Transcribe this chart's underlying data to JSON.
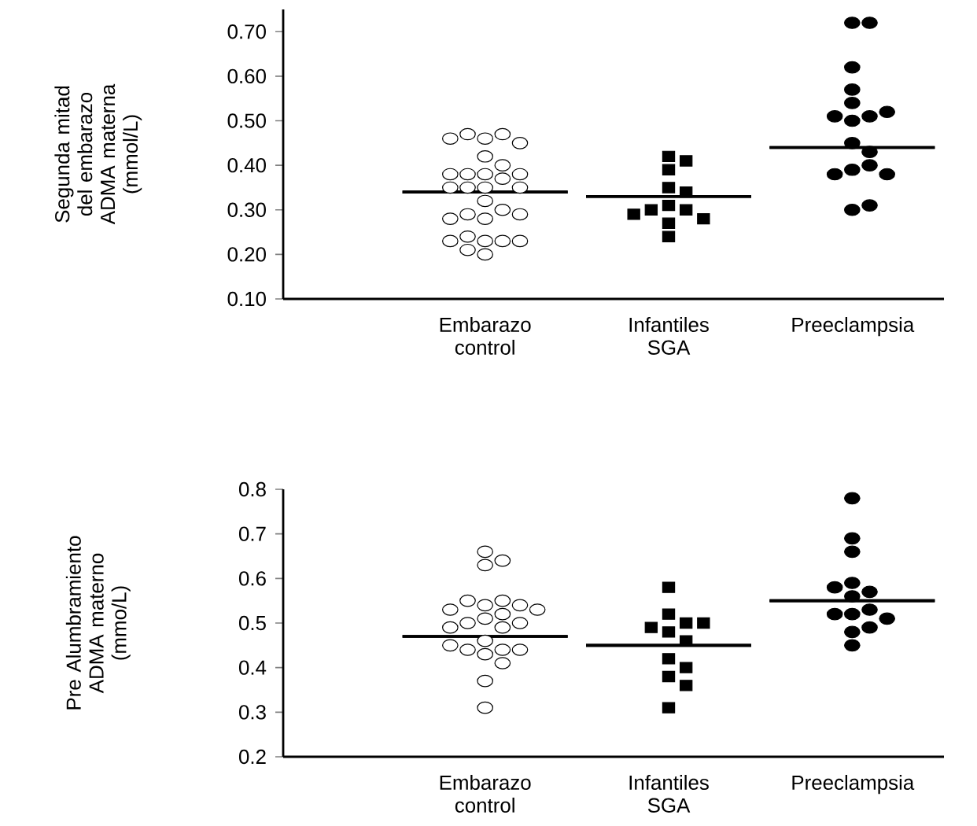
{
  "chart_data": [
    {
      "type": "scatter",
      "ylabel": "Segunda mitad del embarazo ADMA materna (mmol/L)",
      "categories": [
        "Embarazo control",
        "Infantiles SGA",
        "Preeclampsia"
      ],
      "ylim": [
        0.1,
        0.75
      ],
      "yticks": [
        {
          "value": 0.1,
          "label": "0.10"
        },
        {
          "value": 0.2,
          "label": "0.20"
        },
        {
          "value": 0.3,
          "label": "0.30"
        },
        {
          "value": 0.4,
          "label": "0.40"
        },
        {
          "value": 0.5,
          "label": "0.50"
        },
        {
          "value": 0.6,
          "label": "0.60"
        },
        {
          "value": 0.7,
          "label": "0.70"
        }
      ],
      "series": [
        {
          "color": "#ffffff",
          "marker": "circle",
          "x": [
            "Embarazo control",
            "Embarazo control",
            "Embarazo control",
            "Embarazo control",
            "Embarazo control",
            "Embarazo control",
            "Embarazo control",
            "Embarazo control",
            "Embarazo control",
            "Embarazo control",
            "Embarazo control",
            "Embarazo control",
            "Embarazo control",
            "Embarazo control",
            "Embarazo control",
            "Embarazo control",
            "Embarazo control",
            "Embarazo control",
            "Embarazo control",
            "Embarazo control",
            "Embarazo control",
            "Embarazo control",
            "Embarazo control",
            "Embarazo control",
            "Embarazo control",
            "Embarazo control",
            "Embarazo control",
            "Embarazo control",
            "Embarazo control"
          ],
          "values": [
            0.46,
            0.47,
            0.47,
            0.45,
            0.46,
            0.42,
            0.4,
            0.38,
            0.38,
            0.38,
            0.38,
            0.37,
            0.35,
            0.35,
            0.35,
            0.35,
            0.32,
            0.3,
            0.28,
            0.29,
            0.29,
            0.28,
            0.23,
            0.23,
            0.24,
            0.23,
            0.23,
            0.2,
            0.21
          ]
        },
        {
          "color": "#000000",
          "marker": "square",
          "x": [
            "Infantiles SGA",
            "Infantiles SGA",
            "Infantiles SGA",
            "Infantiles SGA",
            "Infantiles SGA",
            "Infantiles SGA",
            "Infantiles SGA",
            "Infantiles SGA",
            "Infantiles SGA",
            "Infantiles SGA",
            "Infantiles SGA",
            "Infantiles SGA"
          ],
          "values": [
            0.42,
            0.41,
            0.39,
            0.35,
            0.34,
            0.31,
            0.3,
            0.3,
            0.27,
            0.28,
            0.29,
            0.24
          ]
        },
        {
          "color": "#000000",
          "marker": "circle",
          "x": [
            "Preeclampsia",
            "Preeclampsia",
            "Preeclampsia",
            "Preeclampsia",
            "Preeclampsia",
            "Preeclampsia",
            "Preeclampsia",
            "Preeclampsia",
            "Preeclampsia",
            "Preeclampsia",
            "Preeclampsia",
            "Preeclampsia",
            "Preeclampsia",
            "Preeclampsia",
            "Preeclampsia",
            "Preeclampsia",
            "Preeclampsia"
          ],
          "values": [
            0.72,
            0.72,
            0.62,
            0.57,
            0.54,
            0.5,
            0.51,
            0.51,
            0.52,
            0.45,
            0.43,
            0.39,
            0.4,
            0.38,
            0.38,
            0.3,
            0.31
          ]
        },
        {
          "type": "box",
          "color": "#000000",
          "boxes": [
            {
              "low": 0.34,
              "q1": 0.34,
              "median": 0.34,
              "q3": 0.34,
              "high": 0.34
            },
            {
              "low": 0.33,
              "q1": 0.33,
              "median": 0.33,
              "q3": 0.33,
              "high": 0.33
            },
            {
              "low": 0.44,
              "q1": 0.44,
              "median": 0.44,
              "q3": 0.44,
              "high": 0.44
            }
          ]
        }
      ]
    },
    {
      "type": "scatter",
      "ylabel": "Pre Alumbramiento ADMA materno (mmo/L)",
      "categories": [
        "Embarazo control",
        "Infantiles SGA",
        "Preeclampsia"
      ],
      "ylim": [
        0.2,
        0.8
      ],
      "yticks": [
        0.2,
        0.3,
        0.4,
        0.5,
        0.6,
        0.7,
        0.8
      ],
      "series": [
        {
          "color": "#ffffff",
          "marker": "circle",
          "x": [
            "Embarazo control",
            "Embarazo control",
            "Embarazo control",
            "Embarazo control",
            "Embarazo control",
            "Embarazo control",
            "Embarazo control",
            "Embarazo control",
            "Embarazo control",
            "Embarazo control",
            "Embarazo control",
            "Embarazo control",
            "Embarazo control",
            "Embarazo control",
            "Embarazo control",
            "Embarazo control",
            "Embarazo control",
            "Embarazo control",
            "Embarazo control",
            "Embarazo control",
            "Embarazo control",
            "Embarazo control",
            "Embarazo control",
            "Embarazo control"
          ],
          "values": [
            0.63,
            0.64,
            0.66,
            0.54,
            0.55,
            0.55,
            0.54,
            0.53,
            0.51,
            0.52,
            0.53,
            0.5,
            0.5,
            0.49,
            0.49,
            0.46,
            0.44,
            0.44,
            0.44,
            0.45,
            0.43,
            0.41,
            0.37,
            0.31
          ]
        },
        {
          "color": "#000000",
          "marker": "square",
          "x": [
            "Infantiles SGA",
            "Infantiles SGA",
            "Infantiles SGA",
            "Infantiles SGA",
            "Infantiles SGA",
            "Infantiles SGA",
            "Infantiles SGA",
            "Infantiles SGA",
            "Infantiles SGA",
            "Infantiles SGA",
            "Infantiles SGA",
            "Infantiles SGA"
          ],
          "values": [
            0.58,
            0.52,
            0.5,
            0.48,
            0.49,
            0.5,
            0.46,
            0.42,
            0.4,
            0.38,
            0.36,
            0.31
          ]
        },
        {
          "color": "#000000",
          "marker": "circle",
          "x": [
            "Preeclampsia",
            "Preeclampsia",
            "Preeclampsia",
            "Preeclampsia",
            "Preeclampsia",
            "Preeclampsia",
            "Preeclampsia",
            "Preeclampsia",
            "Preeclampsia",
            "Preeclampsia",
            "Preeclampsia",
            "Preeclampsia",
            "Preeclampsia",
            "Preeclampsia"
          ],
          "values": [
            0.78,
            0.69,
            0.66,
            0.59,
            0.57,
            0.58,
            0.56,
            0.52,
            0.53,
            0.52,
            0.51,
            0.48,
            0.49,
            0.45
          ]
        },
        {
          "type": "box",
          "color": "#000000",
          "boxes": [
            {
              "low": 0.47,
              "q1": 0.47,
              "median": 0.47,
              "q3": 0.47,
              "high": 0.47
            },
            {
              "low": 0.45,
              "q1": 0.45,
              "median": 0.45,
              "q3": 0.45,
              "high": 0.45
            },
            {
              "low": 0.55,
              "q1": 0.55,
              "median": 0.55,
              "q3": 0.55,
              "high": 0.55
            }
          ]
        }
      ]
    }
  ]
}
